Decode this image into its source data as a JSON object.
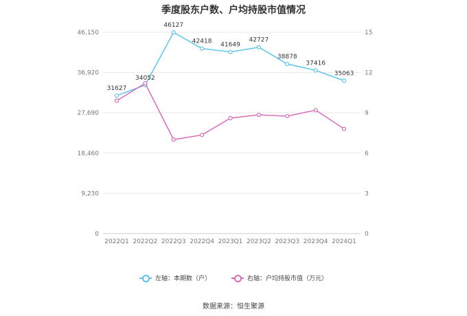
{
  "chart_data": {
    "type": "line",
    "title": "季度股东户数、户均持股市值情况",
    "categories": [
      "2022Q1",
      "2022Q2",
      "2022Q3",
      "2022Q4",
      "2023Q1",
      "2023Q2",
      "2023Q3",
      "2023Q4",
      "2024Q1"
    ],
    "series": [
      {
        "name": "左轴：本期数（户）",
        "axis": "left",
        "color": "#5bc4ee",
        "values": [
          31627,
          34052,
          46127,
          42418,
          41649,
          42727,
          38878,
          37416,
          35063
        ],
        "labels": [
          "31627",
          "34052",
          "46127",
          "42418",
          "41649",
          "42727",
          "38878",
          "37416",
          "35063"
        ]
      },
      {
        "name": "右轴：户均持股市值（万元）",
        "axis": "right",
        "color": "#d96cb8",
        "values": [
          9.9,
          11.2,
          7.0,
          7.35,
          8.6,
          8.85,
          8.75,
          9.2,
          7.8
        ]
      }
    ],
    "y_left": {
      "min": 0,
      "max": 46150,
      "ticks": [
        0,
        9230,
        18460,
        27690,
        36920,
        46150
      ],
      "tick_labels": [
        "0",
        "9,230",
        "18,460",
        "27,690",
        "36,920",
        "46,150"
      ]
    },
    "y_right": {
      "min": 0,
      "max": 15,
      "ticks": [
        0,
        3,
        6,
        9,
        12,
        15
      ],
      "tick_labels": [
        "0",
        "3",
        "6",
        "9",
        "12",
        "15"
      ]
    },
    "grid": true,
    "legend_position": "bottom"
  },
  "source": "数据来源：恒生聚源"
}
